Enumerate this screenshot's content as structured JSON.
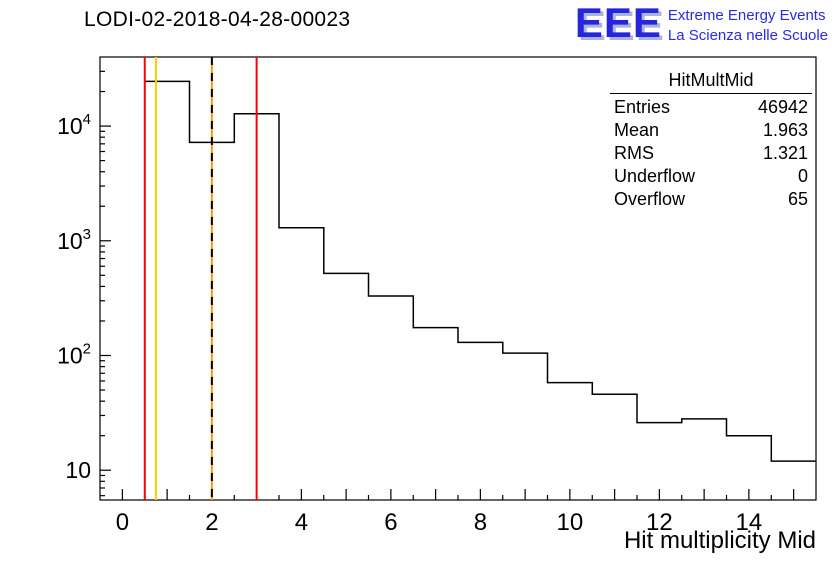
{
  "header": {
    "title": "LODI-02-2018-04-28-00023"
  },
  "logo": {
    "acronym": "EEE",
    "line1": "Extreme Energy Events",
    "line2": "La Scienza nelle Scuole",
    "color": "#2a2ae6"
  },
  "stats": {
    "title": "HitMultMid",
    "rows": [
      {
        "label": "Entries",
        "value": "46942"
      },
      {
        "label": "Mean",
        "value": "1.963"
      },
      {
        "label": "RMS",
        "value": "1.321"
      },
      {
        "label": "Underflow",
        "value": "0"
      },
      {
        "label": "Overflow",
        "value": "65"
      }
    ]
  },
  "chart_data": {
    "type": "histogram",
    "title": "LODI-02-2018-04-28-00023",
    "xlabel": "Hit multiplicity Mid",
    "ylabel": "",
    "ylog": true,
    "xlim": [
      -0.5,
      15.5
    ],
    "ylim": [
      5.5,
      40000
    ],
    "bin_edges": [
      0.5,
      1.5,
      2.5,
      3.5,
      4.5,
      5.5,
      6.5,
      7.5,
      8.5,
      9.5,
      10.5,
      11.5,
      12.5,
      13.5,
      14.5,
      15.5
    ],
    "counts": [
      24500,
      7200,
      12800,
      1300,
      520,
      330,
      175,
      130,
      105,
      58,
      46,
      26,
      28,
      20,
      12
    ],
    "line_color": "#000000",
    "x_tick_labels": [
      0,
      2,
      4,
      6,
      8,
      10,
      12,
      14
    ],
    "y_tick_labels": [
      {
        "value": 10,
        "base": "10",
        "sup": ""
      },
      {
        "value": 100,
        "base": "10",
        "sup": "2"
      },
      {
        "value": 1000,
        "base": "10",
        "sup": "3"
      },
      {
        "value": 10000,
        "base": "10",
        "sup": "4"
      }
    ],
    "vlines": [
      {
        "x": 0.5,
        "color": "#ff0000",
        "style": "solid"
      },
      {
        "x": 0.75,
        "color": "#ffcc00",
        "style": "solid"
      },
      {
        "x": 2.0,
        "color": "#ff9900",
        "style": "solid",
        "dash_overlay": "#000000"
      },
      {
        "x": 3.0,
        "color": "#ff0000",
        "style": "solid"
      }
    ]
  }
}
